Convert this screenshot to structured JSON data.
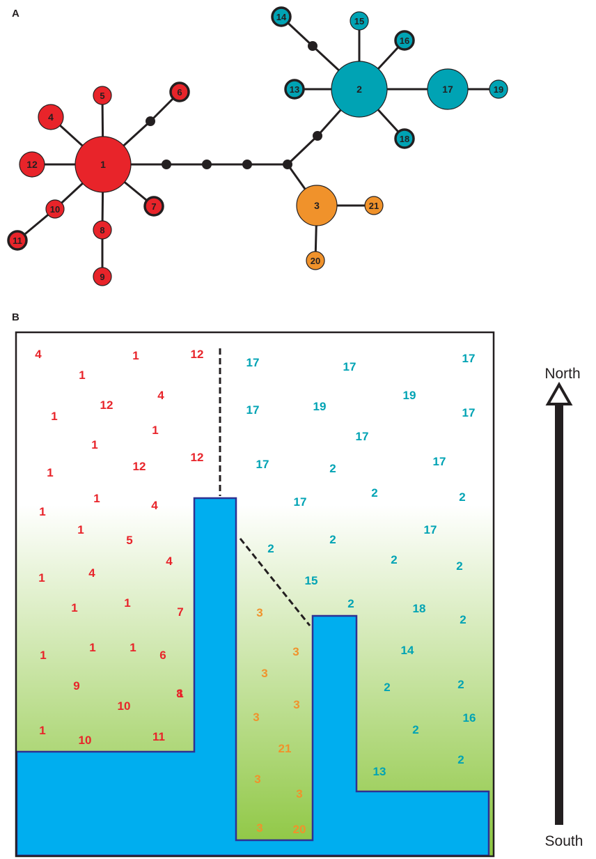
{
  "panel_a": {
    "label": "A",
    "colors": {
      "red": "#e8242a",
      "teal": "#00a3b4",
      "orange": "#f0922b",
      "stroke": "#231f20"
    },
    "nodes": [
      {
        "id": "1",
        "group": "red",
        "size": "large"
      },
      {
        "id": "2",
        "group": "teal",
        "size": "large"
      },
      {
        "id": "3",
        "group": "orange",
        "size": "medium"
      },
      {
        "id": "4",
        "group": "red",
        "size": "small"
      },
      {
        "id": "5",
        "group": "red",
        "size": "tiny"
      },
      {
        "id": "6",
        "group": "red",
        "size": "tiny"
      },
      {
        "id": "7",
        "group": "red",
        "size": "tiny"
      },
      {
        "id": "8",
        "group": "red",
        "size": "tiny"
      },
      {
        "id": "9",
        "group": "red",
        "size": "tiny"
      },
      {
        "id": "10",
        "group": "red",
        "size": "tiny"
      },
      {
        "id": "11",
        "group": "red",
        "size": "tiny"
      },
      {
        "id": "12",
        "group": "red",
        "size": "small"
      },
      {
        "id": "13",
        "group": "teal",
        "size": "tiny"
      },
      {
        "id": "14",
        "group": "teal",
        "size": "tiny"
      },
      {
        "id": "15",
        "group": "teal",
        "size": "tiny"
      },
      {
        "id": "16",
        "group": "teal",
        "size": "tiny"
      },
      {
        "id": "17",
        "group": "teal",
        "size": "medium"
      },
      {
        "id": "18",
        "group": "teal",
        "size": "tiny"
      },
      {
        "id": "19",
        "group": "teal",
        "size": "tiny"
      },
      {
        "id": "20",
        "group": "orange",
        "size": "tiny"
      },
      {
        "id": "21",
        "group": "orange",
        "size": "tiny"
      }
    ],
    "missing_intermediates": 6
  },
  "panel_b": {
    "label": "B",
    "colors": {
      "water": "#00aeef",
      "water_edge": "#2e3192",
      "gradient_top": "#ffffff",
      "gradient_bottom": "#8cc63f"
    },
    "compass": {
      "north": "North",
      "south": "South"
    },
    "west_labels": [
      "4",
      "1",
      "12",
      "1",
      "4",
      "1",
      "12",
      "1",
      "1",
      "12",
      "12",
      "1",
      "1",
      "4",
      "1",
      "1",
      "5",
      "4",
      "1",
      "4",
      "1",
      "1",
      "7",
      "1",
      "1",
      "6",
      "1",
      "9",
      "8",
      "10",
      "1",
      "1",
      "10",
      "11"
    ],
    "middle_labels": [
      "3",
      "3",
      "3",
      "3",
      "3",
      "21",
      "3",
      "3",
      "3",
      "20"
    ],
    "east_labels": [
      "17",
      "17",
      "17",
      "17",
      "19",
      "19",
      "17",
      "17",
      "17",
      "17",
      "2",
      "17",
      "2",
      "2",
      "17",
      "2",
      "2",
      "2",
      "15",
      "2",
      "2",
      "18",
      "2",
      "14",
      "2",
      "2",
      "16",
      "2",
      "2",
      "13"
    ]
  }
}
